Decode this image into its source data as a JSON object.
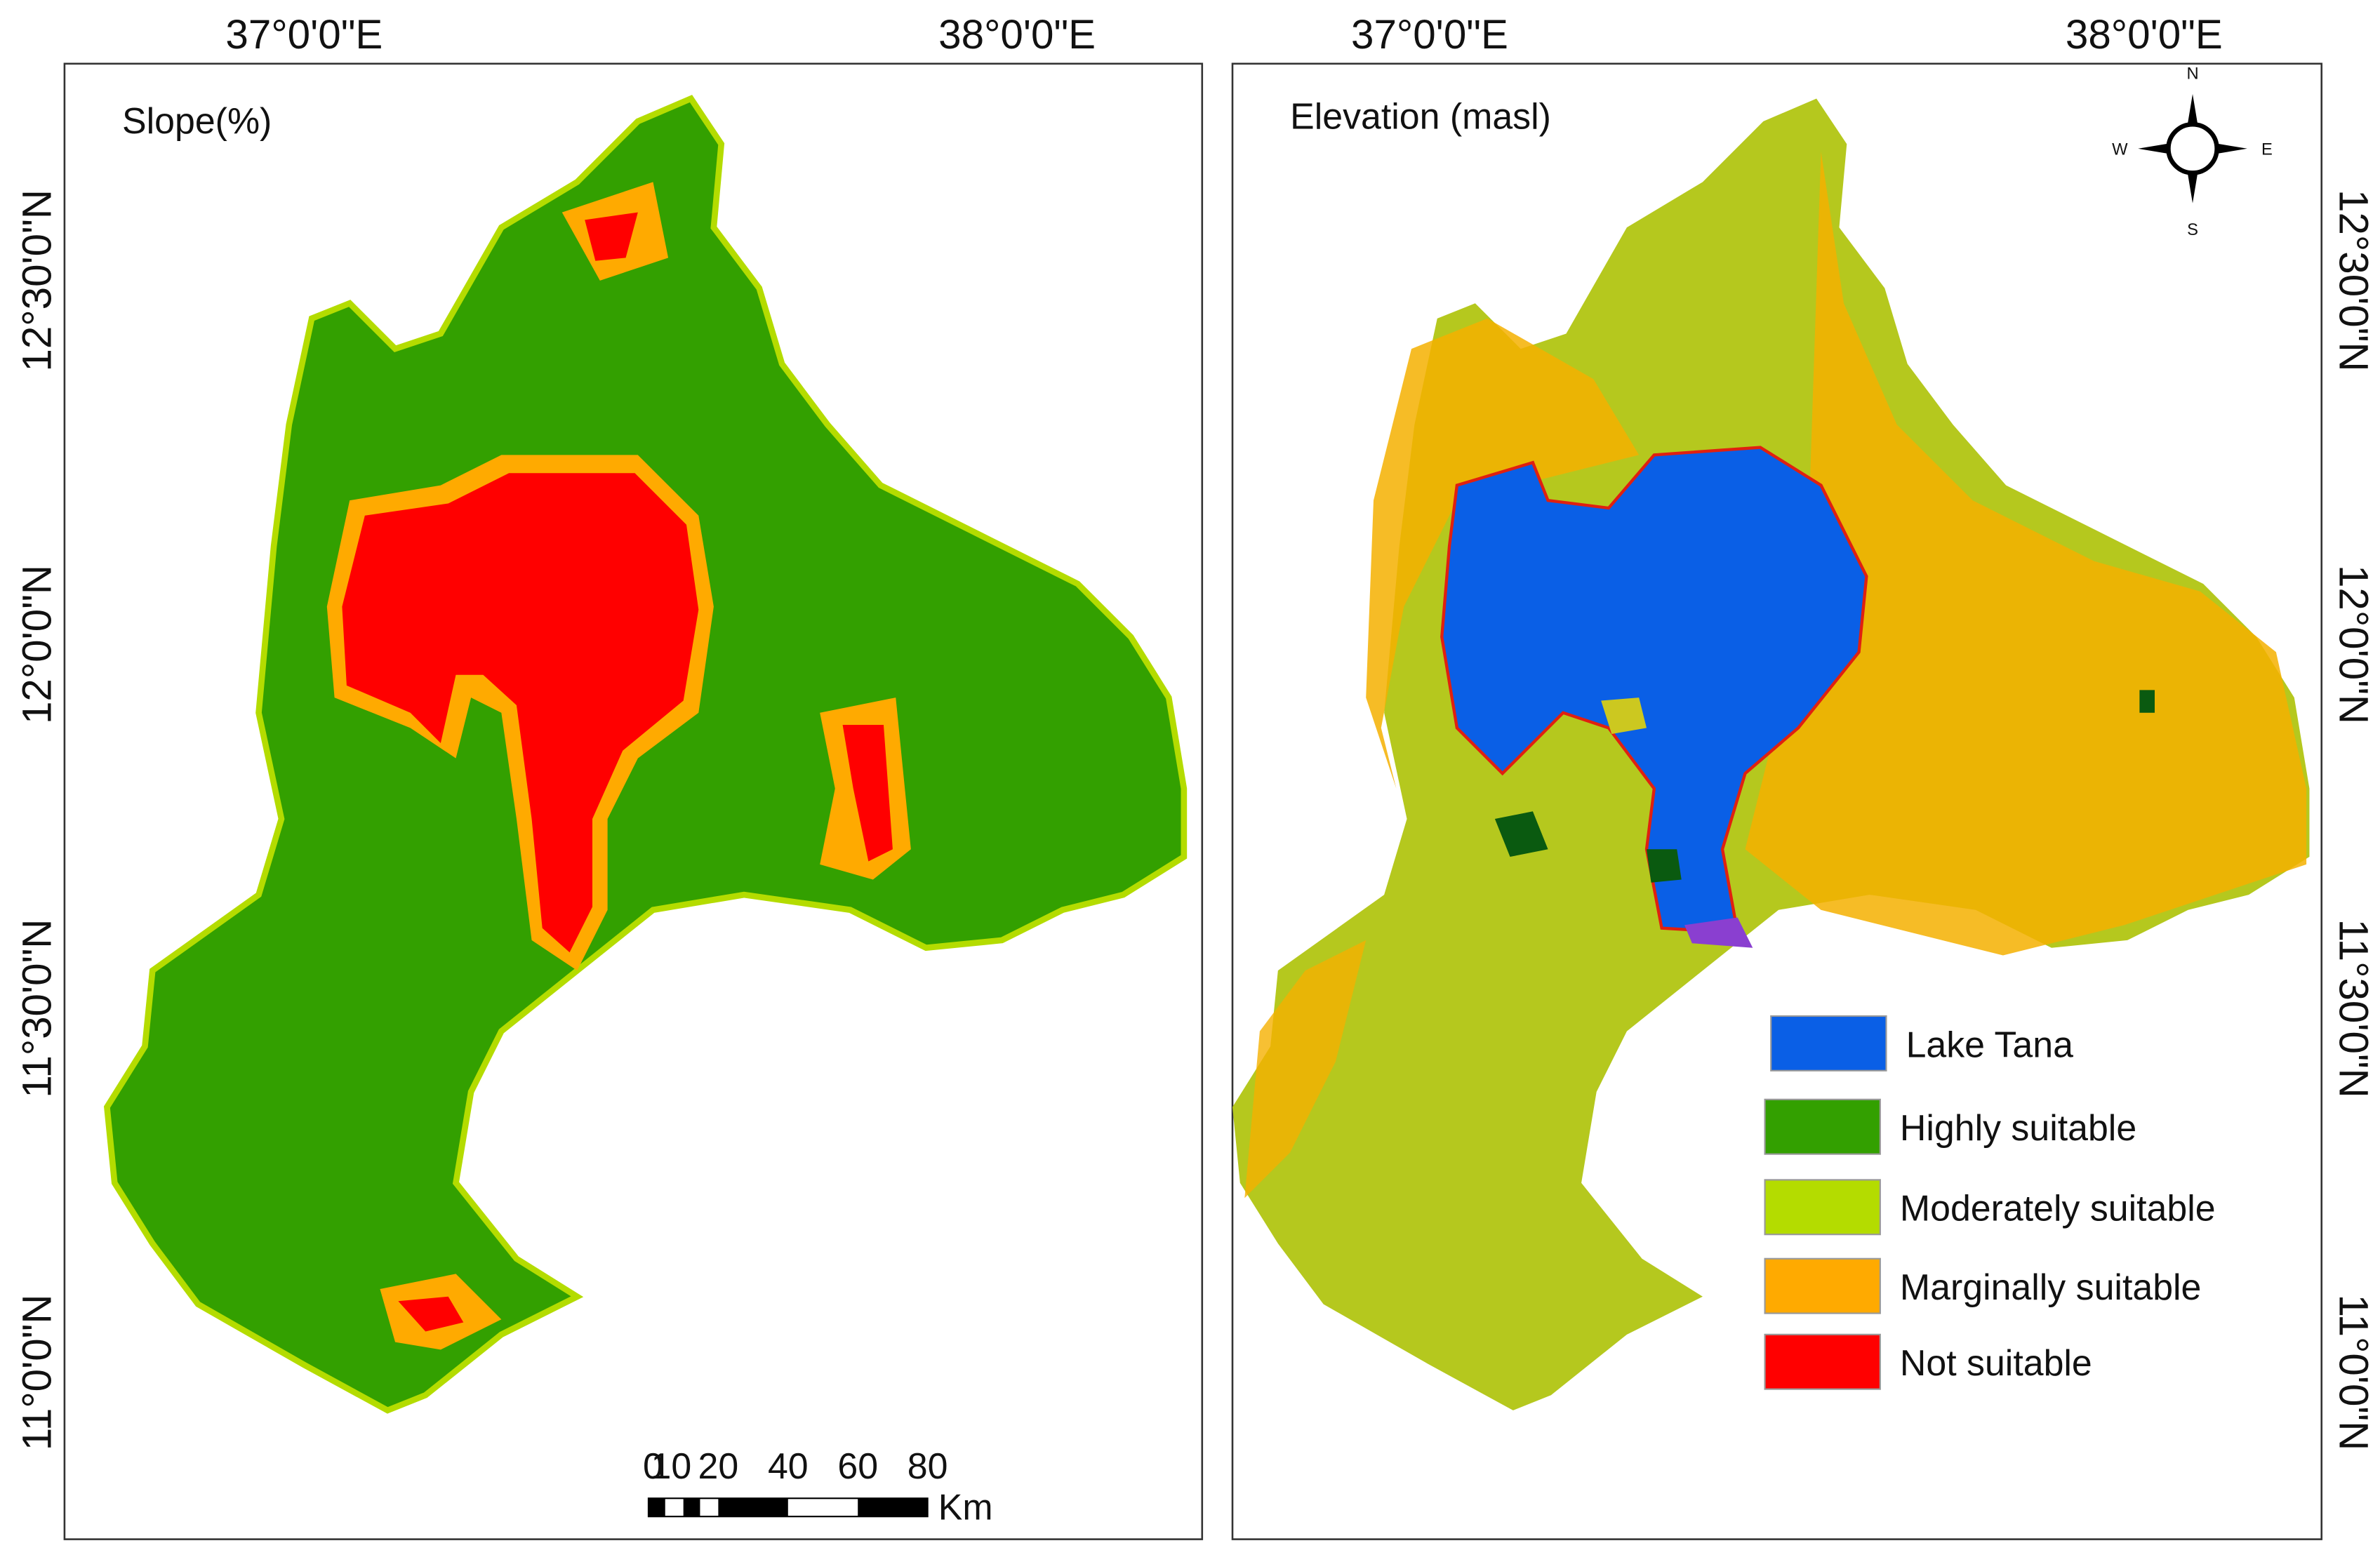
{
  "panels": [
    {
      "title": "Slope(%)",
      "x_labels": [
        "37°0'0\"E",
        "38°0'0\"E"
      ],
      "y_labels": [
        "12°30'0\"N",
        "12°0'0\"N",
        "11°30'0\"N",
        "11°0'0\"N"
      ]
    },
    {
      "title": "Elevation (masl)",
      "x_labels": [
        "37°0'0\"E",
        "38°0'0\"E"
      ],
      "y_labels": [
        "12°30'0\"N",
        "12°0'0\"N",
        "11°30'0\"N",
        "11°0'0\"N"
      ]
    }
  ],
  "legend": [
    {
      "label": "Lake Tana",
      "color": "#0a5fe6"
    },
    {
      "label": "Highly suitable",
      "color": "#33a000"
    },
    {
      "label": "Moderately  suitable",
      "color": "#b4dc00"
    },
    {
      "label": "Marginally suitable",
      "color": "#ffaa00"
    },
    {
      "label": "Not suitable",
      "color": "#ff0000"
    }
  ],
  "scale_bar": {
    "ticks": [
      0,
      10,
      20,
      40,
      60,
      80
    ],
    "unit": "Km"
  },
  "compass": {
    "n": "N",
    "s": "S",
    "e": "E",
    "w": "W"
  }
}
